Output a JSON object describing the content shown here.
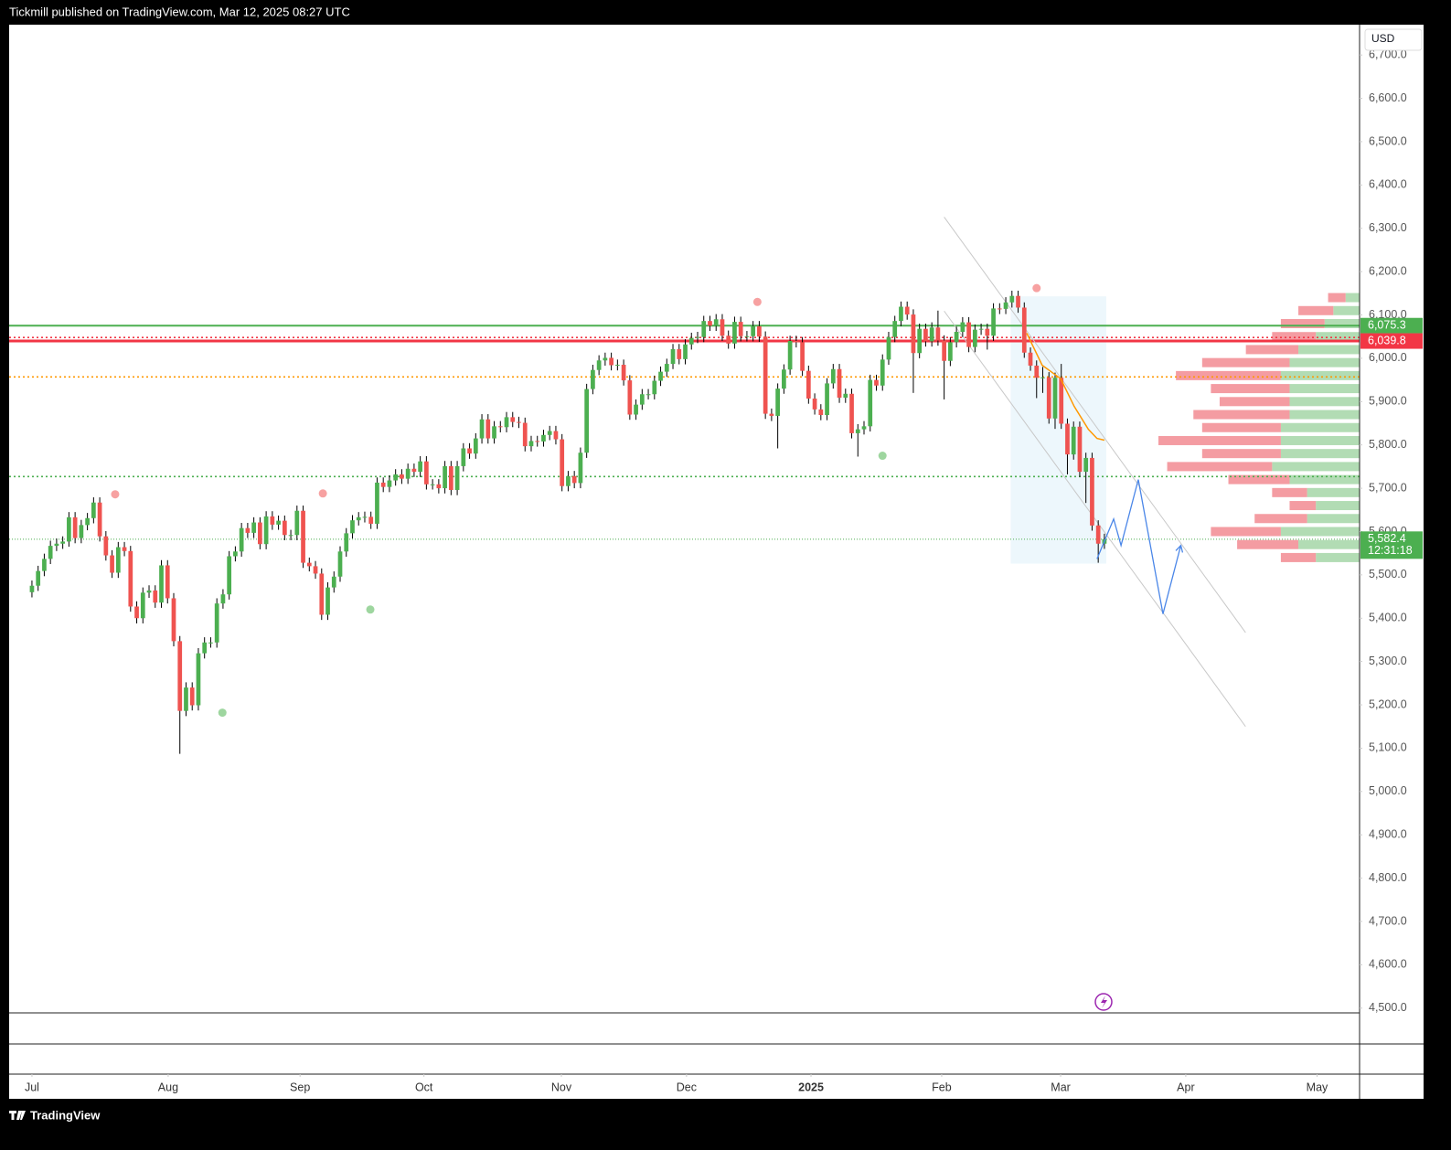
{
  "header": "Tickmill published on TradingView.com, Mar 12, 2025 08:27 UTC",
  "footer": "TradingView",
  "chart_data": {
    "type": "candlestick",
    "currency": "USD",
    "up_color": "#4caf50",
    "down_color": "#ef5350",
    "open": [
      5460,
      5475,
      5509,
      5537,
      5567,
      5572,
      5577,
      5633,
      5585,
      5615,
      5631,
      5667,
      5589,
      5545,
      5505,
      5564,
      5555,
      5427,
      5400,
      5459,
      5464,
      5436,
      5522,
      5446,
      5347,
      5186,
      5240,
      5199,
      5319,
      5344,
      5344,
      5434,
      5455,
      5543,
      5554,
      5608,
      5597,
      5621,
      5571,
      5635,
      5616,
      5625,
      5592,
      5592,
      5648,
      5528,
      5520,
      5503,
      5408,
      5471,
      5496,
      5554,
      5596,
      5626,
      5633,
      5634,
      5618,
      5713,
      5703,
      5718,
      5732,
      5722,
      5745,
      5738,
      5762,
      5709,
      5709,
      5700,
      5751,
      5696,
      5751,
      5792,
      5780,
      5815,
      5859,
      5815,
      5843,
      5841,
      5864,
      5853,
      5851,
      5797,
      5809,
      5808,
      5823,
      5832,
      5813,
      5705,
      5728,
      5712,
      5782,
      5929,
      5973,
      5995,
      6001,
      5984,
      5985,
      5949,
      5870,
      5893,
      5917,
      5917,
      5948,
      5969,
      5987,
      6021,
      5998,
      6032,
      6047,
      6049,
      6086,
      6075,
      6090,
      6052,
      6034,
      6084,
      6051,
      6051,
      6074,
      6050,
      5872,
      5867,
      5930,
      5974,
      6040,
      6037,
      5971,
      5907,
      5882,
      5869,
      5942,
      5975,
      5909,
      5918,
      5827,
      5836,
      5843,
      5950,
      5937,
      5997,
      6049,
      6086,
      6119,
      6101,
      6012,
      6068,
      6039,
      6071,
      6041,
      5994,
      6037,
      6061,
      6083,
      6026,
      6066,
      6068,
      6052,
      6115,
      6114,
      6129,
      6144,
      6117,
      6013,
      5983,
      5955,
      5956,
      5861,
      5955,
      5849,
      5778,
      5842,
      5738,
      5770,
      5614,
      5572
    ],
    "high": [
      5487,
      5521,
      5549,
      5579,
      5584,
      5589,
      5645,
      5645,
      5627,
      5643,
      5679,
      5679,
      5601,
      5557,
      5576,
      5576,
      5567,
      5439,
      5471,
      5476,
      5476,
      5534,
      5534,
      5458,
      5359,
      5252,
      5252,
      5331,
      5356,
      5356,
      5446,
      5467,
      5555,
      5566,
      5620,
      5620,
      5633,
      5633,
      5647,
      5647,
      5637,
      5637,
      5604,
      5660,
      5660,
      5540,
      5532,
      5515,
      5483,
      5508,
      5566,
      5608,
      5638,
      5645,
      5646,
      5646,
      5725,
      5725,
      5730,
      5744,
      5744,
      5757,
      5757,
      5774,
      5774,
      5721,
      5721,
      5763,
      5763,
      5763,
      5804,
      5804,
      5827,
      5871,
      5871,
      5855,
      5855,
      5876,
      5876,
      5865,
      5863,
      5821,
      5821,
      5835,
      5844,
      5844,
      5825,
      5740,
      5740,
      5794,
      5941,
      5985,
      6007,
      6013,
      6013,
      5997,
      5997,
      5961,
      5905,
      5929,
      5929,
      5960,
      5981,
      5999,
      6033,
      6033,
      6044,
      6059,
      6061,
      6098,
      6098,
      6102,
      6102,
      6064,
      6096,
      6096,
      6063,
      6086,
      6086,
      6062,
      5884,
      5942,
      5986,
      6052,
      6052,
      6049,
      5983,
      5919,
      5894,
      5954,
      5987,
      5987,
      5930,
      5930,
      5848,
      5855,
      5962,
      5962,
      6009,
      6061,
      6098,
      6131,
      6131,
      6113,
      6080,
      6080,
      6083,
      6110,
      6053,
      6049,
      6073,
      6095,
      6095,
      6078,
      6080,
      6080,
      6127,
      6127,
      6141,
      6156,
      6156,
      6129,
      6025,
      5995,
      5980,
      5968,
      5967,
      5987,
      5861,
      5854,
      5854,
      5782,
      5782,
      5626,
      5595
    ],
    "low": [
      5448,
      5463,
      5497,
      5525,
      5555,
      5560,
      5565,
      5573,
      5573,
      5603,
      5619,
      5577,
      5533,
      5493,
      5493,
      5543,
      5415,
      5388,
      5388,
      5447,
      5424,
      5424,
      5434,
      5335,
      5087,
      5174,
      5187,
      5187,
      5307,
      5332,
      5332,
      5422,
      5443,
      5531,
      5542,
      5585,
      5585,
      5559,
      5559,
      5604,
      5604,
      5580,
      5580,
      5580,
      5516,
      5508,
      5491,
      5396,
      5396,
      5459,
      5484,
      5542,
      5584,
      5614,
      5621,
      5606,
      5606,
      5691,
      5691,
      5706,
      5710,
      5710,
      5726,
      5726,
      5697,
      5697,
      5688,
      5688,
      5684,
      5684,
      5739,
      5768,
      5768,
      5803,
      5803,
      5803,
      5829,
      5829,
      5841,
      5839,
      5785,
      5785,
      5796,
      5796,
      5811,
      5801,
      5693,
      5693,
      5700,
      5700,
      5770,
      5917,
      5961,
      5983,
      5972,
      5972,
      5937,
      5858,
      5858,
      5881,
      5905,
      5905,
      5936,
      5957,
      5975,
      5986,
      5986,
      6020,
      6035,
      6037,
      6063,
      6063,
      6040,
      6022,
      6022,
      6039,
      6039,
      6039,
      6038,
      5860,
      5855,
      5792,
      5918,
      5962,
      6025,
      5959,
      5895,
      5870,
      5857,
      5857,
      5930,
      5897,
      5897,
      5815,
      5773,
      5824,
      5831,
      5925,
      5925,
      5985,
      6037,
      6074,
      6089,
      5920,
      6000,
      6027,
      6027,
      6029,
      5905,
      5982,
      6025,
      6049,
      6014,
      6014,
      6054,
      6020,
      6040,
      6102,
      6102,
      6117,
      6105,
      6001,
      5971,
      5908,
      5920,
      5849,
      5837,
      5837,
      5732,
      5766,
      5726,
      5666,
      5602,
      5528,
      5560
    ],
    "close": [
      5475,
      5509,
      5537,
      5567,
      5572,
      5577,
      5633,
      5585,
      5615,
      5631,
      5667,
      5589,
      5545,
      5505,
      5564,
      5555,
      5427,
      5400,
      5459,
      5464,
      5436,
      5522,
      5446,
      5347,
      5186,
      5240,
      5199,
      5319,
      5344,
      5344,
      5434,
      5455,
      5543,
      5554,
      5608,
      5597,
      5621,
      5571,
      5635,
      5616,
      5625,
      5592,
      5592,
      5648,
      5528,
      5520,
      5503,
      5408,
      5471,
      5496,
      5554,
      5596,
      5626,
      5633,
      5634,
      5618,
      5713,
      5703,
      5718,
      5732,
      5722,
      5745,
      5738,
      5762,
      5709,
      5709,
      5700,
      5751,
      5696,
      5751,
      5792,
      5780,
      5815,
      5859,
      5815,
      5843,
      5841,
      5864,
      5853,
      5851,
      5797,
      5809,
      5808,
      5823,
      5832,
      5813,
      5705,
      5728,
      5712,
      5782,
      5929,
      5973,
      5995,
      6001,
      5984,
      5985,
      5949,
      5870,
      5893,
      5917,
      5917,
      5948,
      5969,
      5987,
      6021,
      5998,
      6032,
      6047,
      6049,
      6086,
      6075,
      6090,
      6052,
      6034,
      6084,
      6051,
      6051,
      6074,
      6050,
      5872,
      5867,
      5930,
      5974,
      6040,
      6037,
      5971,
      5907,
      5882,
      5869,
      5942,
      5975,
      5909,
      5918,
      5827,
      5836,
      5843,
      5950,
      5937,
      5997,
      6049,
      6086,
      6119,
      6101,
      6012,
      6068,
      6039,
      6071,
      6041,
      5994,
      6037,
      6061,
      6083,
      6026,
      6066,
      6068,
      6052,
      6115,
      6114,
      6129,
      6144,
      6117,
      6013,
      5983,
      5955,
      5956,
      5861,
      5955,
      5849,
      5778,
      5842,
      5738,
      5770,
      5614,
      5572,
      5582.4
    ],
    "xlim": [
      -3.7,
      215.4
    ],
    "xticks": [
      {
        "value": 0,
        "label": "Jul"
      },
      {
        "value": 22.1,
        "label": "Aug"
      },
      {
        "value": 43.5,
        "label": "Sep"
      },
      {
        "value": 63.6,
        "label": "Oct"
      },
      {
        "value": 85.9,
        "label": "Nov"
      },
      {
        "value": 106.2,
        "label": "Dec"
      },
      {
        "value": 126.4,
        "label": "2025"
      },
      {
        "value": 147.6,
        "label": "Feb"
      },
      {
        "value": 166.9,
        "label": "Mar"
      },
      {
        "value": 187.2,
        "label": "Apr"
      },
      {
        "value": 208.5,
        "label": "May"
      }
    ],
    "ylim": [
      4489,
      6770
    ],
    "yticks": [
      {
        "value": 4500,
        "label": "4,500.0"
      },
      {
        "value": 4600,
        "label": "4,600.0"
      },
      {
        "value": 4700,
        "label": "4,700.0"
      },
      {
        "value": 4800,
        "label": "4,800.0"
      },
      {
        "value": 4900,
        "label": "4,900.0"
      },
      {
        "value": 5000,
        "label": "5,000.0"
      },
      {
        "value": 5100,
        "label": "5,100.0"
      },
      {
        "value": 5200,
        "label": "5,200.0"
      },
      {
        "value": 5300,
        "label": "5,300.0"
      },
      {
        "value": 5400,
        "label": "5,400.0"
      },
      {
        "value": 5500,
        "label": "5,500.0"
      },
      {
        "value": 5600,
        "label": "5,600.0"
      },
      {
        "value": 5700,
        "label": "5,700.0"
      },
      {
        "value": 5800,
        "label": "5,800.0"
      },
      {
        "value": 5900,
        "label": "5,900.0"
      },
      {
        "value": 6000,
        "label": "6,000.0"
      },
      {
        "value": 6100,
        "label": "6,100.0"
      },
      {
        "value": 6200,
        "label": "6,200.0"
      },
      {
        "value": 6300,
        "label": "6,300.0"
      },
      {
        "value": 6400,
        "label": "6,400.0"
      },
      {
        "value": 6500,
        "label": "6,500.0"
      },
      {
        "value": 6600,
        "label": "6,600.0"
      },
      {
        "value": 6700,
        "label": "6,700.0"
      }
    ],
    "grid": false,
    "levels": [
      {
        "value": 6075.3,
        "label": "6,075.3",
        "color": "#4caf50",
        "style": "solid"
      },
      {
        "value": 6039.8,
        "label": "6,039.8",
        "color": "#f23645",
        "style": "thick"
      },
      {
        "value": 6048,
        "color": "#f23645",
        "style": "dotted"
      },
      {
        "value": 5957,
        "color": "#ff9800",
        "style": "dotted"
      },
      {
        "value": 5727,
        "color": "#4caf50",
        "style": "dotted"
      },
      {
        "value": 5582.4,
        "label": "5,582.4",
        "countdown": "12:31:18",
        "color": "#4caf50",
        "style": "fine-dotted"
      }
    ],
    "pivot_highs": {
      "x": [
        13.5,
        47.2,
        117.7,
        163
      ],
      "y": [
        5686,
        5688,
        6130,
        6162
      ],
      "color": "#f7a1a1"
    },
    "pivot_lows": {
      "x": [
        30.9,
        54.9,
        138
      ],
      "y": [
        5182,
        5420,
        5775
      ],
      "color": "#9ed69f"
    },
    "channel": {
      "color": "#c8c8c8",
      "lines": [
        {
          "x": [
            148,
            196.9
          ],
          "y": [
            6326,
            5367
          ]
        },
        {
          "x": [
            148,
            196.9
          ],
          "y": [
            6109,
            5150
          ]
        }
      ]
    },
    "range_box": {
      "x": [
        158.8,
        174.3
      ],
      "y": [
        6143,
        5526
      ],
      "color": "#e6f4fb"
    },
    "trend": {
      "x": [
        161.4,
        163.9,
        166.9,
        169.1,
        171.4,
        172.8,
        174.0
      ],
      "y": [
        6058,
        5984,
        5953,
        5889,
        5836,
        5815,
        5811
      ],
      "color": "#ff9800"
    },
    "projection": {
      "x": [
        172.8,
        175.5,
        176.7,
        179.5,
        183.5,
        186.4
      ],
      "y": [
        5537,
        5629,
        5568,
        5720,
        5410,
        5568
      ],
      "color": "#4a86e8"
    },
    "volume_profile": {
      "prices": [
        5540,
        5570,
        5600,
        5630,
        5660,
        5690,
        5720,
        5750,
        5780,
        5810,
        5840,
        5870,
        5900,
        5930,
        5960,
        5990,
        6020,
        6050,
        6080,
        6110,
        6140
      ],
      "up": [
        25,
        35,
        45,
        30,
        25,
        30,
        40,
        50,
        45,
        45,
        45,
        40,
        40,
        40,
        45,
        40,
        35,
        25,
        20,
        15,
        8
      ],
      "down": [
        20,
        35,
        40,
        30,
        15,
        20,
        35,
        60,
        45,
        70,
        45,
        55,
        40,
        45,
        60,
        50,
        30,
        25,
        25,
        20,
        10
      ],
      "up_color": "#a5d6a7",
      "down_color": "#f28b92"
    }
  }
}
